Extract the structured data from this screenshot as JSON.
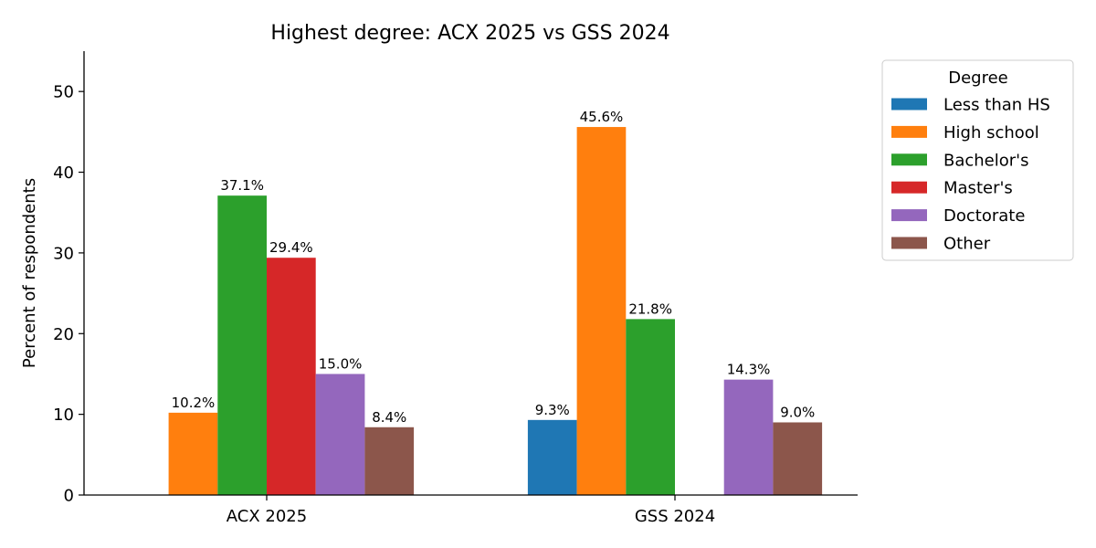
{
  "chart_data": {
    "type": "bar",
    "title": "Highest degree: ACX 2025 vs GSS 2024",
    "xlabel": "",
    "ylabel": "Percent of respondents",
    "ylim": [
      0,
      55
    ],
    "yticks": [
      0,
      10,
      20,
      30,
      40,
      50
    ],
    "grid": false,
    "categories": [
      "ACX 2025",
      "GSS 2024"
    ],
    "legend": {
      "title": "Degree",
      "placement": "outside-right"
    },
    "series": [
      {
        "name": "Less than HS",
        "color": "#1f77b4",
        "values": [
          null,
          9.3
        ],
        "labels": [
          "",
          "9.3%"
        ]
      },
      {
        "name": "High school",
        "color": "#ff7f0e",
        "values": [
          10.2,
          45.6
        ],
        "labels": [
          "10.2%",
          "45.6%"
        ]
      },
      {
        "name": "Bachelor's",
        "color": "#2ca02c",
        "values": [
          37.1,
          21.8
        ],
        "labels": [
          "37.1%",
          "21.8%"
        ]
      },
      {
        "name": "Master's",
        "color": "#d62728",
        "values": [
          29.4,
          null
        ],
        "labels": [
          "29.4%",
          ""
        ]
      },
      {
        "name": "Doctorate",
        "color": "#9467bd",
        "values": [
          15.0,
          14.3
        ],
        "labels": [
          "15.0%",
          "14.3%"
        ]
      },
      {
        "name": "Other",
        "color": "#8c564b",
        "values": [
          8.4,
          9.0
        ],
        "labels": [
          "8.4%",
          "9.0%"
        ]
      }
    ]
  }
}
